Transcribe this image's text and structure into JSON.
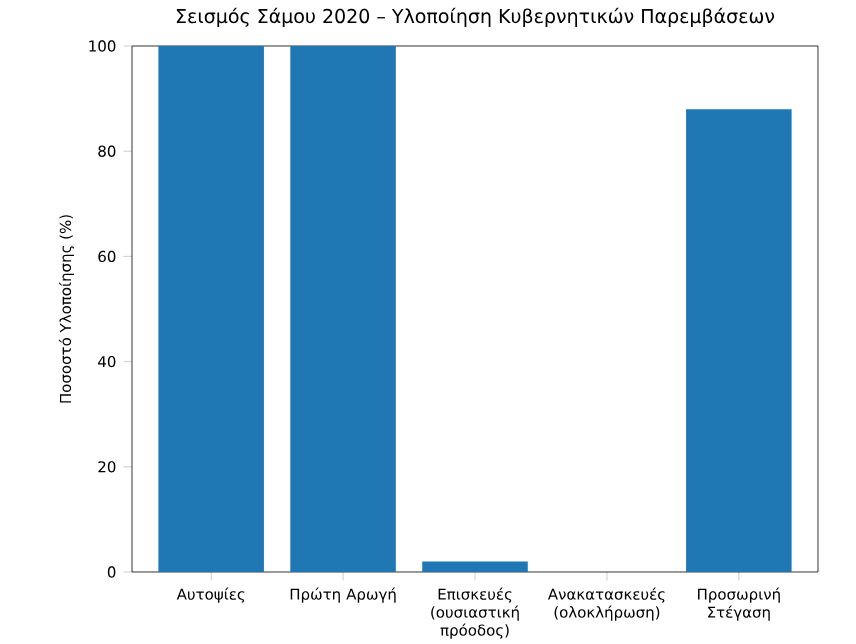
{
  "chart_data": {
    "type": "bar",
    "title": "Σεισμός Σάμου 2020 – Υλοποίηση Κυβερνητικών Παρεμβάσεων",
    "ylabel": "Ποσοστό Υλοποίησης (%)",
    "categories": [
      "Αυτοψίες",
      "Πρώτη Αρωγή",
      "Επισκευές (ουσιαστική πρόοδος)",
      "Ανακατασκευές (ολοκλήρωση)",
      "Προσωρινή Στέγαση"
    ],
    "values": [
      100,
      100,
      2,
      0,
      88
    ],
    "color": "#1f77b4",
    "ylim": [
      0,
      100
    ],
    "yticks": [
      0,
      20,
      40,
      60,
      80,
      100
    ],
    "grid": false
  }
}
